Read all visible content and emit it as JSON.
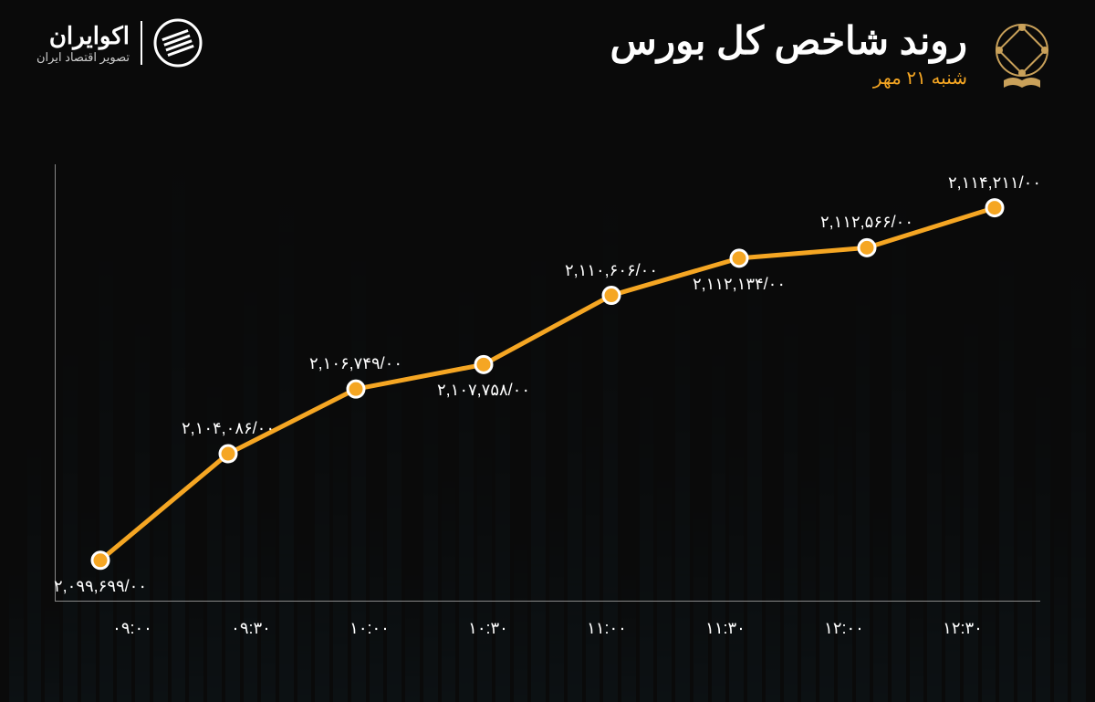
{
  "brand": {
    "name": "اکوایران",
    "tagline": "تصویر اقتصاد ایران"
  },
  "title": "روند شاخص کل بورس",
  "date": "شنبه ۲۱ مهر",
  "chart": {
    "type": "line",
    "line_color": "#f5a623",
    "line_width": 5,
    "marker_fill": "#f5a623",
    "marker_stroke": "#ffffff",
    "marker_radius": 9,
    "marker_stroke_width": 3,
    "background_color": "#0a0a0a",
    "axis_color": "#888888",
    "text_color": "#ffffff",
    "label_fontsize": 18,
    "x_labels": [
      "۰۹:۰۰",
      "۰۹:۳۰",
      "۱۰:۰۰",
      "۱۰:۳۰",
      "۱۱:۰۰",
      "۱۱:۳۰",
      "۱۲:۰۰",
      "۱۲:۳۰"
    ],
    "ylim": [
      2098000,
      2116000
    ],
    "points": [
      {
        "x": "۰۹:۰۰",
        "value": 2099699,
        "label": "۲,۰۹۹,۶۹۹/۰۰",
        "label_pos": "below"
      },
      {
        "x": "۰۹:۳۰",
        "value": 2104086,
        "label": "۲,۱۰۴,۰۸۶/۰۰",
        "label_pos": "above"
      },
      {
        "x": "۱۰:۰۰",
        "value": 2106749,
        "label": "۲,۱۰۶,۷۴۹/۰۰",
        "label_pos": "above"
      },
      {
        "x": "۱۰:۳۰",
        "value": 2107758,
        "label": "۲,۱۰۷,۷۵۸/۰۰",
        "label_pos": "below"
      },
      {
        "x": "۱۱:۰۰",
        "value": 2110606,
        "label": "۲,۱۱۰,۶۰۶/۰۰",
        "label_pos": "above"
      },
      {
        "x": "۱۱:۳۰",
        "value": 2112134,
        "label": "۲,۱۱۲,۱۳۴/۰۰",
        "label_pos": "below"
      },
      {
        "x": "۱۲:۰۰",
        "value": 2112566,
        "label": "۲,۱۱۲,۵۶۶/۰۰",
        "label_pos": "above"
      },
      {
        "x": "۱۲:۳۰",
        "value": 2114211,
        "label": "۲,۱۱۴,۲۱۱/۰۰",
        "label_pos": "above"
      }
    ]
  },
  "bg_bars": [
    20,
    40,
    15,
    55,
    30,
    70,
    25,
    60,
    35,
    80,
    20,
    50,
    40,
    65,
    30,
    75,
    25,
    55,
    45,
    70,
    30,
    60,
    20,
    50,
    35,
    65,
    40,
    55,
    25,
    70,
    30,
    60,
    45,
    75,
    20,
    50,
    35,
    65,
    30,
    55,
    40,
    70,
    25,
    60,
    35,
    50,
    45,
    65,
    30,
    75,
    20,
    55,
    40,
    60,
    25,
    70,
    35,
    50,
    30,
    65
  ]
}
